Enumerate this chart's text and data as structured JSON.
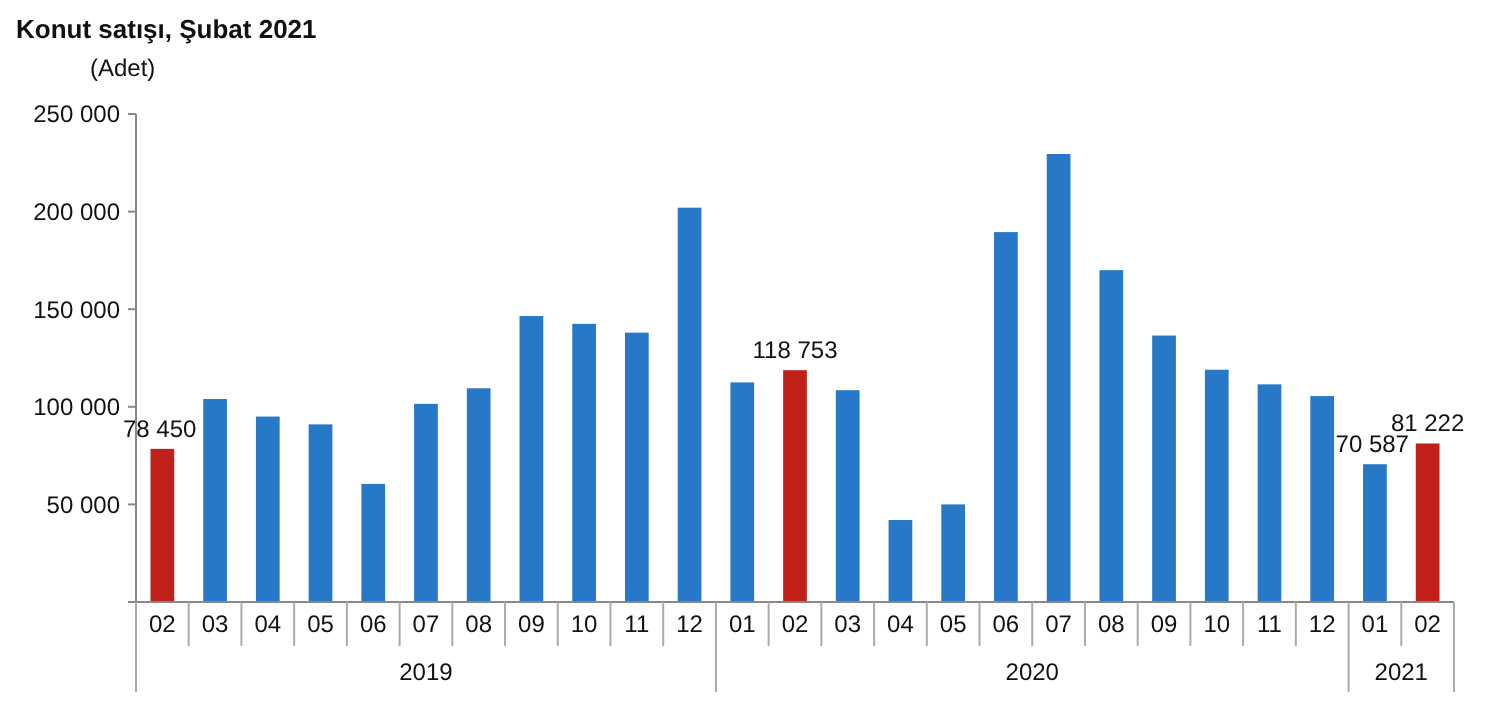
{
  "chart_data": {
    "type": "bar",
    "title": "Konut satışı, Şubat 2021",
    "ylabel": "(Adet)",
    "categories": [
      "02",
      "03",
      "04",
      "05",
      "06",
      "07",
      "08",
      "09",
      "10",
      "11",
      "12",
      "01",
      "02",
      "03",
      "04",
      "05",
      "06",
      "07",
      "08",
      "09",
      "10",
      "11",
      "12",
      "01",
      "02"
    ],
    "values": [
      78450,
      104000,
      95000,
      91000,
      60500,
      101500,
      109500,
      146500,
      142500,
      138000,
      202000,
      112500,
      118753,
      108500,
      42000,
      50000,
      189500,
      229500,
      170000,
      136500,
      119000,
      111500,
      105500,
      70587,
      81222
    ],
    "colors": [
      "#c0211a",
      "#2878c8",
      "#2878c8",
      "#2878c8",
      "#2878c8",
      "#2878c8",
      "#2878c8",
      "#2878c8",
      "#2878c8",
      "#2878c8",
      "#2878c8",
      "#2878c8",
      "#c0211a",
      "#2878c8",
      "#2878c8",
      "#2878c8",
      "#2878c8",
      "#2878c8",
      "#2878c8",
      "#2878c8",
      "#2878c8",
      "#2878c8",
      "#2878c8",
      "#2878c8",
      "#c0211a"
    ],
    "value_labels": [
      "78 450",
      null,
      null,
      null,
      null,
      null,
      null,
      null,
      null,
      null,
      null,
      null,
      "118 753",
      null,
      null,
      null,
      null,
      null,
      null,
      null,
      null,
      null,
      null,
      "70 587",
      "81 222"
    ],
    "ylim": [
      0,
      250000
    ],
    "yticks": [
      {
        "value": 50000,
        "label": "50 000"
      },
      {
        "value": 100000,
        "label": "100 000"
      },
      {
        "value": 150000,
        "label": "150 000"
      },
      {
        "value": 200000,
        "label": "200 000"
      },
      {
        "value": 250000,
        "label": "250 000"
      }
    ],
    "annotations": [
      "2019",
      "2020",
      "2021"
    ],
    "grid": false
  }
}
